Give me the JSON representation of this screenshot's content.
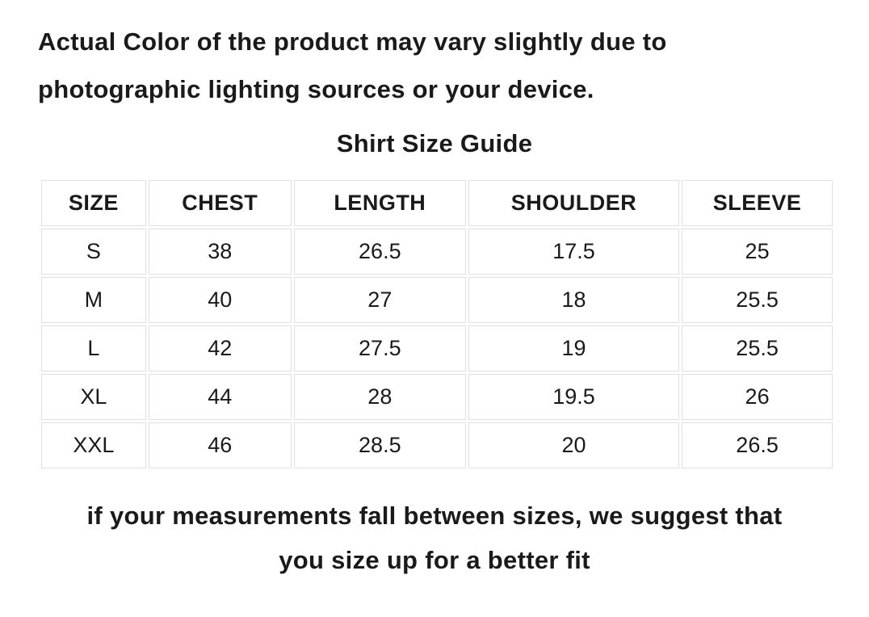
{
  "notice": {
    "line1": "Actual Color of the product may vary slightly due to",
    "line2": "photographic lighting sources or your device."
  },
  "title": "Shirt Size Guide",
  "size_table": {
    "headers": [
      "SIZE",
      "CHEST",
      "LENGTH",
      "SHOULDER",
      "SLEEVE"
    ],
    "rows": [
      [
        "S",
        "38",
        "26.5",
        "17.5",
        "25"
      ],
      [
        "M",
        "40",
        "27",
        "18",
        "25.5"
      ],
      [
        "L",
        "42",
        "27.5",
        "19",
        "25.5"
      ],
      [
        "XL",
        "44",
        "28",
        "19.5",
        "26"
      ],
      [
        "XXL",
        "46",
        "28.5",
        "20",
        "26.5"
      ]
    ]
  },
  "footer": {
    "line1": "if your measurements fall between sizes, we suggest that",
    "line2": "you size up for a better fit"
  },
  "colors": {
    "text": "#1a1a1a",
    "table_border": "#e0e0e0",
    "background": "#ffffff"
  }
}
